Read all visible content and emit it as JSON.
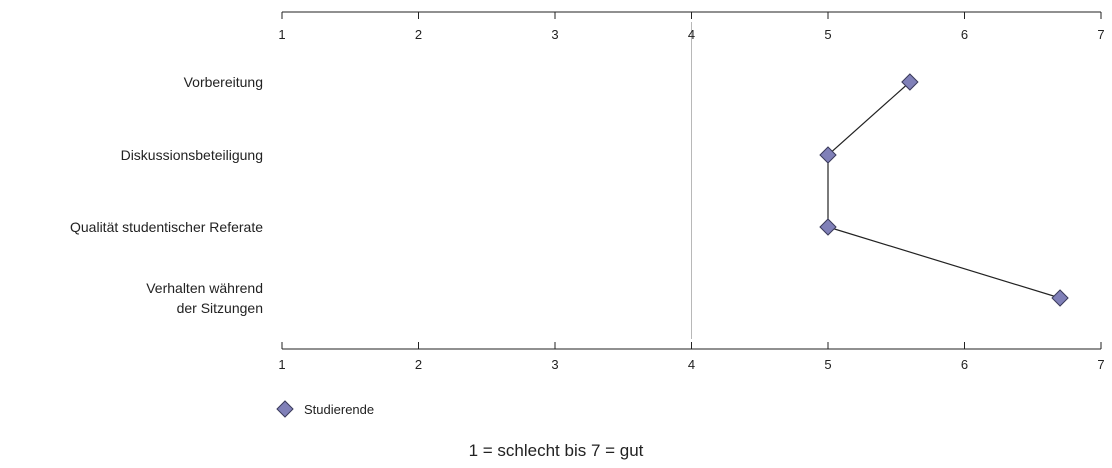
{
  "chart_data": {
    "type": "line",
    "orientation": "horizontal",
    "categories": [
      [
        "Vorbereitung"
      ],
      [
        "Diskussionsbeteiligung"
      ],
      [
        "Qualität studentischer Referate"
      ],
      [
        "Verhalten während",
        "der Sitzungen"
      ]
    ],
    "series": [
      {
        "name": "Studierende",
        "values": [
          5.6,
          5.0,
          5.0,
          6.7
        ],
        "color": "#8080b8",
        "marker": "diamond"
      }
    ],
    "xlim": [
      1,
      7
    ],
    "xticks": [
      "1",
      "2",
      "3",
      "4",
      "5",
      "6",
      "7"
    ],
    "reference_line": 4,
    "axis_ticks_position": "top-and-bottom",
    "legend_position": "bottom-left",
    "note": "1 = schlecht bis 7 = gut",
    "grid": false
  }
}
